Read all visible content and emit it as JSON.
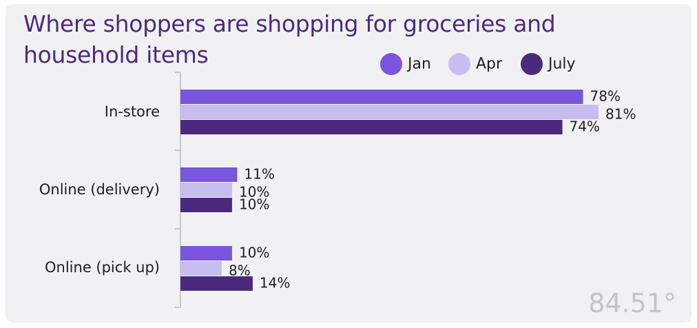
{
  "title": [
    "Where shoppers are shopping for groceries and",
    "household items"
  ],
  "brand": "84.51°",
  "colors": {
    "title": "#4b2a7e",
    "jan": "#7a55de",
    "apr": "#c8bdf0",
    "july": "#4b2a7e",
    "axis": "#c8c8cc",
    "text": "#1e1e1e",
    "brand": "#c4c4c8"
  },
  "chart_data": {
    "type": "bar",
    "orientation": "horizontal",
    "categories": [
      "In-store",
      "Online (delivery)",
      "Online (pick up)"
    ],
    "series": [
      {
        "name": "Jan",
        "values": [
          78,
          11,
          10
        ],
        "labels": [
          "78%",
          "11%",
          "10%"
        ]
      },
      {
        "name": "Apr",
        "values": [
          81,
          10,
          8
        ],
        "labels": [
          "81%",
          "10%",
          "8%"
        ]
      },
      {
        "name": "July",
        "values": [
          74,
          10,
          14
        ],
        "labels": [
          "74%",
          "10%",
          "14%"
        ]
      }
    ],
    "unit": "%",
    "xlim": [
      0,
      100
    ],
    "grid": false,
    "legend_position": "top-right"
  }
}
